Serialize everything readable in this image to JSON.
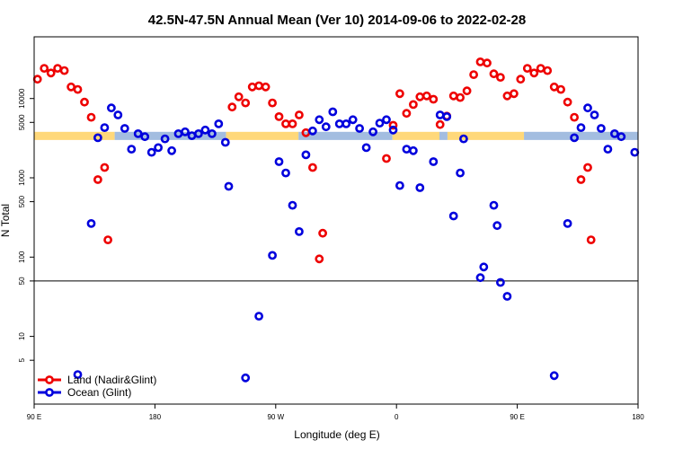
{
  "chart_data": {
    "type": "scatter",
    "title": "42.5N-47.5N Annual Mean (Ver 10)   2014-09-06 to 2022-02-28",
    "xlabel": "Longitude (deg E)",
    "ylabel": "N Total",
    "x_scale": "linear",
    "y_scale": "log",
    "xlim": [
      90,
      540
    ],
    "ylim": [
      1.4,
      60000
    ],
    "x_ticks": [
      {
        "value": 90,
        "label": "90 E"
      },
      {
        "value": 180,
        "label": "180"
      },
      {
        "value": 270,
        "label": "90 W"
      },
      {
        "value": 360,
        "label": "0"
      },
      {
        "value": 450,
        "label": "90 E"
      },
      {
        "value": 540,
        "label": "180"
      }
    ],
    "y_ticks": [
      {
        "value": 5,
        "label": "5"
      },
      {
        "value": 10,
        "label": "10"
      },
      {
        "value": 50,
        "label": "50"
      },
      {
        "value": 100,
        "label": "100"
      },
      {
        "value": 500,
        "label": "500"
      },
      {
        "value": 1000,
        "label": "1000"
      },
      {
        "value": 5000,
        "label": "5000"
      },
      {
        "value": 10000,
        "label": "10000"
      }
    ],
    "reference_line": {
      "y": 50
    },
    "surface_band": {
      "y_low": 3000,
      "y_high": 3800,
      "land_color": "#ffd87a",
      "ocean_color": "#a3bde0"
    },
    "surface_segments": [
      {
        "type": "land",
        "x0": 90,
        "x1": 150
      },
      {
        "type": "ocean",
        "x0": 150,
        "x1": 233
      },
      {
        "type": "land",
        "x0": 233,
        "x1": 287
      },
      {
        "type": "ocean",
        "x0": 287,
        "x1": 357
      },
      {
        "type": "land",
        "x0": 357,
        "x1": 392
      },
      {
        "type": "ocean",
        "x0": 392,
        "x1": 398
      },
      {
        "type": "land",
        "x0": 398,
        "x1": 455
      },
      {
        "type": "ocean",
        "x0": 455,
        "x1": 540
      }
    ],
    "series": [
      {
        "name": "Land (Nadir&Glint)",
        "color": "#ee0000",
        "points": [
          [
            92.5,
            17500
          ],
          [
            97.5,
            24000
          ],
          [
            102.5,
            21000
          ],
          [
            107.5,
            24000
          ],
          [
            112.5,
            22500
          ],
          [
            117.5,
            14000
          ],
          [
            122.5,
            13000
          ],
          [
            127.5,
            9000
          ],
          [
            132.5,
            5800
          ],
          [
            137.5,
            950
          ],
          [
            142.5,
            1350
          ],
          [
            145,
            165
          ],
          [
            237.5,
            7800
          ],
          [
            242.5,
            10500
          ],
          [
            247.5,
            8800
          ],
          [
            252.5,
            14000
          ],
          [
            257.5,
            14500
          ],
          [
            262.5,
            14000
          ],
          [
            267.5,
            8800
          ],
          [
            272.5,
            5900
          ],
          [
            277.5,
            4800
          ],
          [
            282.5,
            4800
          ],
          [
            287.5,
            6200
          ],
          [
            292.5,
            3700
          ],
          [
            297.5,
            1350
          ],
          [
            302.5,
            95
          ],
          [
            305,
            200
          ],
          [
            352.5,
            1750
          ],
          [
            357.5,
            4600
          ],
          [
            362.5,
            11500
          ],
          [
            367.5,
            6500
          ],
          [
            372.5,
            8400
          ],
          [
            377.5,
            10500
          ],
          [
            382.5,
            10800
          ],
          [
            387.5,
            9800
          ],
          [
            392.5,
            4700
          ],
          [
            397.5,
            6000
          ],
          [
            402.5,
            10800
          ],
          [
            407.5,
            10300
          ],
          [
            412.5,
            12500
          ],
          [
            417.5,
            20000
          ],
          [
            422.5,
            29000
          ],
          [
            427.5,
            28000
          ],
          [
            432.5,
            20500
          ],
          [
            437.5,
            18500
          ],
          [
            442.5,
            10800
          ],
          [
            447.5,
            11500
          ],
          [
            452.5,
            17500
          ],
          [
            457.5,
            24000
          ],
          [
            462.5,
            21000
          ],
          [
            467.5,
            24000
          ],
          [
            472.5,
            22500
          ],
          [
            477.5,
            14000
          ],
          [
            482.5,
            13000
          ],
          [
            487.5,
            9000
          ],
          [
            492.5,
            5800
          ],
          [
            497.5,
            950
          ],
          [
            502.5,
            1350
          ],
          [
            505,
            165
          ]
        ]
      },
      {
        "name": "Ocean (Glint)",
        "color": "#0000dd",
        "points": [
          [
            122.5,
            3.3
          ],
          [
            132.5,
            265
          ],
          [
            137.5,
            3200
          ],
          [
            142.5,
            4300
          ],
          [
            147.5,
            7600
          ],
          [
            152.5,
            6200
          ],
          [
            157.5,
            4200
          ],
          [
            162.5,
            2300
          ],
          [
            167.5,
            3600
          ],
          [
            172.5,
            3300
          ],
          [
            177.5,
            2100
          ],
          [
            182.5,
            2400
          ],
          [
            187.5,
            3100
          ],
          [
            192.5,
            2200
          ],
          [
            197.5,
            3600
          ],
          [
            202.5,
            3800
          ],
          [
            207.5,
            3400
          ],
          [
            212.5,
            3600
          ],
          [
            217.5,
            4000
          ],
          [
            222.5,
            3600
          ],
          [
            227.5,
            4800
          ],
          [
            232.5,
            2800
          ],
          [
            235,
            780
          ],
          [
            247.5,
            3.0
          ],
          [
            257.5,
            18
          ],
          [
            267.5,
            105
          ],
          [
            272.5,
            1600
          ],
          [
            277.5,
            1150
          ],
          [
            282.5,
            450
          ],
          [
            287.5,
            210
          ],
          [
            292.5,
            1950
          ],
          [
            297.5,
            3900
          ],
          [
            302.5,
            5400
          ],
          [
            307.5,
            4400
          ],
          [
            312.5,
            6800
          ],
          [
            317.5,
            4800
          ],
          [
            322.5,
            4800
          ],
          [
            327.5,
            5400
          ],
          [
            332.5,
            4200
          ],
          [
            337.5,
            2400
          ],
          [
            342.5,
            3800
          ],
          [
            347.5,
            4900
          ],
          [
            352.5,
            5400
          ],
          [
            357.5,
            4000
          ],
          [
            362.5,
            800
          ],
          [
            367.5,
            2300
          ],
          [
            372.5,
            2200
          ],
          [
            377.5,
            750
          ],
          [
            387.5,
            1600
          ],
          [
            392.5,
            6200
          ],
          [
            397.5,
            5900
          ],
          [
            402.5,
            330
          ],
          [
            407.5,
            1150
          ],
          [
            410,
            3100
          ],
          [
            422.5,
            55
          ],
          [
            425,
            75
          ],
          [
            432.5,
            450
          ],
          [
            435,
            250
          ],
          [
            437.5,
            48
          ],
          [
            442.5,
            32
          ],
          [
            477.5,
            3.2
          ],
          [
            487.5,
            265
          ],
          [
            492.5,
            3200
          ],
          [
            497.5,
            4300
          ],
          [
            502.5,
            7600
          ],
          [
            507.5,
            6200
          ],
          [
            512.5,
            4200
          ],
          [
            517.5,
            2300
          ],
          [
            522.5,
            3600
          ],
          [
            527.5,
            3300
          ],
          [
            537.5,
            2100
          ]
        ]
      }
    ],
    "legend": {
      "position": "bottom-left",
      "entries": [
        {
          "label": "Land (Nadir&Glint)",
          "color": "#ee0000"
        },
        {
          "label": "Ocean (Glint)",
          "color": "#0000dd"
        }
      ]
    }
  }
}
